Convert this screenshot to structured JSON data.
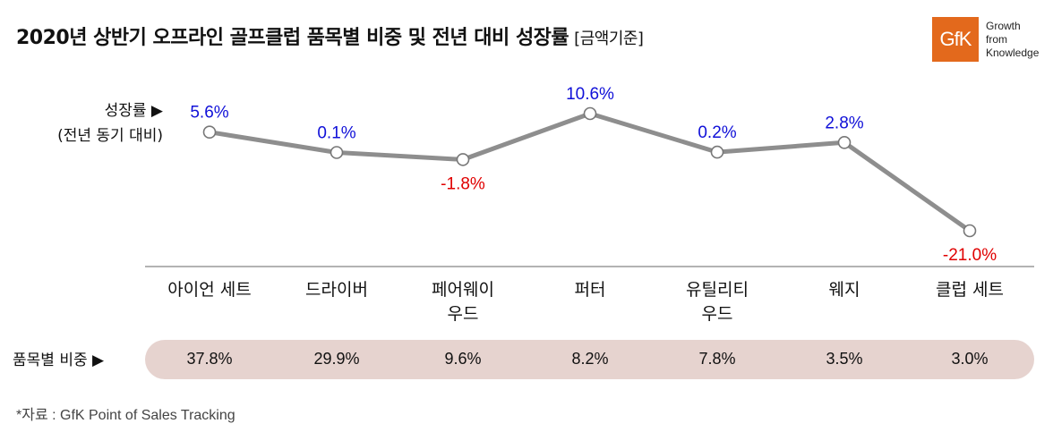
{
  "title": "2020년 상반기 오프라인 골프클럽 품목별 비중 및 전년 대비 성장률",
  "title_sub": "[금액기준]",
  "logo": {
    "mark": "GfK",
    "tagline": [
      "Growth",
      "from",
      "Knowledge"
    ],
    "color": "#e3691c"
  },
  "growth_label": [
    "성장률 ▶",
    "(전년 동기 대비)"
  ],
  "share_label": "품목별 비중 ▶",
  "footnote": "*자료 : GfK Point of Sales Tracking",
  "chart_data": {
    "type": "line",
    "categories": [
      [
        "아이언 세트"
      ],
      [
        "드라이버"
      ],
      [
        "페어웨이",
        "우드"
      ],
      [
        "퍼터"
      ],
      [
        "유틸리티",
        "우드"
      ],
      [
        "웨지"
      ],
      [
        "클럽 세트"
      ]
    ],
    "series": [
      {
        "values": [
          5.6,
          0.1,
          -1.8,
          10.6,
          0.2,
          2.8,
          -21.0
        ],
        "labels": [
          "5.6%",
          "0.1%",
          "-1.8%",
          "10.6%",
          "0.2%",
          "2.8%",
          "-21.0%"
        ]
      }
    ],
    "shares": [
      "37.8%",
      "29.9%",
      "9.6%",
      "8.2%",
      "7.8%",
      "3.5%",
      "3.0%"
    ],
    "share_values": [
      37.8,
      29.9,
      9.6,
      8.2,
      7.8,
      3.5,
      3.0
    ],
    "colors": {
      "line": "#8e8e8e",
      "positive": "#1010d8",
      "negative": "#e00000",
      "share_band": "#e6d3cf"
    },
    "grid": false,
    "legend": "none"
  }
}
